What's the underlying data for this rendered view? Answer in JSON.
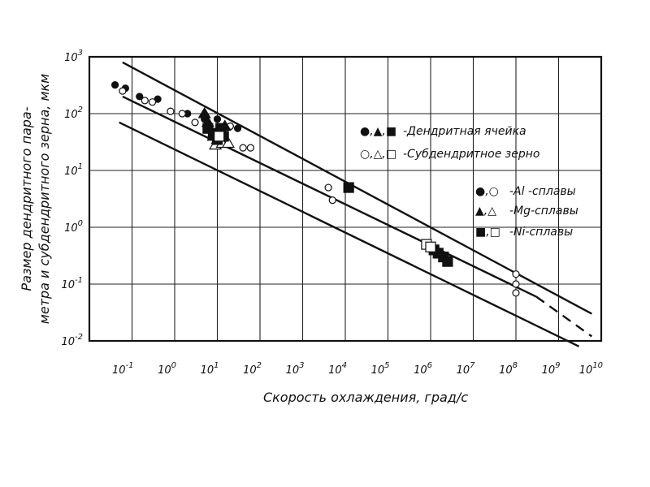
{
  "chart_data": {
    "type": "scatter",
    "title": "",
    "xlabel": "Скорость охлаждения, град/с",
    "ylabel_line1": "Размер дендритного пара-",
    "ylabel_line2": "метра и субдендритного зерна, мкм",
    "x_scale": "log",
    "y_scale": "log",
    "xlim": [
      0.01,
      10000000000
    ],
    "ylim": [
      0.01,
      1000
    ],
    "grid": true,
    "x_ticks": [
      {
        "value": 0.1,
        "base": "10",
        "exp": "-1"
      },
      {
        "value": 1,
        "base": "10",
        "exp": "0"
      },
      {
        "value": 10,
        "base": "10",
        "exp": "1"
      },
      {
        "value": 100,
        "base": "10",
        "exp": "2"
      },
      {
        "value": 1000,
        "base": "10",
        "exp": "3"
      },
      {
        "value": 10000,
        "base": "10",
        "exp": "4"
      },
      {
        "value": 100000,
        "base": "10",
        "exp": "5"
      },
      {
        "value": 1000000,
        "base": "10",
        "exp": "6"
      },
      {
        "value": 10000000,
        "base": "10",
        "exp": "7"
      },
      {
        "value": 100000000,
        "base": "10",
        "exp": "8"
      },
      {
        "value": 1000000000,
        "base": "10",
        "exp": "9"
      },
      {
        "value": 10000000000,
        "base": "10",
        "exp": "10"
      }
    ],
    "y_ticks": [
      {
        "value": 1000,
        "base": "10",
        "exp": "3"
      },
      {
        "value": 100,
        "base": "10",
        "exp": "2"
      },
      {
        "value": 10,
        "base": "10",
        "exp": "1"
      },
      {
        "value": 1,
        "base": "10",
        "exp": "0"
      },
      {
        "value": 0.1,
        "base": "10",
        "exp": "-1"
      },
      {
        "value": 0.01,
        "base": "10",
        "exp": "-2"
      }
    ],
    "lines": [
      {
        "name": "",
        "style": "solid",
        "points": [
          [
            0.06,
            800
          ],
          [
            6000000000,
            0.03
          ]
        ]
      },
      {
        "name": "",
        "style": "solid",
        "points": [
          [
            0.06,
            200
          ],
          [
            300000000,
            0.06
          ]
        ]
      },
      {
        "name": "",
        "style": "dashed",
        "points": [
          [
            300000000,
            0.06
          ],
          [
            6000000000,
            0.012
          ]
        ]
      },
      {
        "name": "",
        "style": "solid",
        "points": [
          [
            0.05,
            70
          ],
          [
            3000000000,
            0.008
          ]
        ]
      }
    ],
    "series": [
      {
        "name": "Al-сплавы, дендритная ячейка",
        "marker": "circle",
        "filled": true,
        "points": [
          [
            0.04,
            320
          ],
          [
            0.07,
            280
          ],
          [
            0.15,
            200
          ],
          [
            0.4,
            180
          ],
          [
            2,
            100
          ],
          [
            5,
            80
          ],
          [
            10,
            80
          ],
          [
            30,
            55
          ],
          [
            20,
            60
          ]
        ]
      },
      {
        "name": "Al-сплавы, субдендритное зерно",
        "marker": "circle",
        "filled": false,
        "points": [
          [
            0.06,
            250
          ],
          [
            0.2,
            170
          ],
          [
            0.3,
            160
          ],
          [
            0.8,
            110
          ],
          [
            1.5,
            100
          ],
          [
            3,
            70
          ],
          [
            20,
            60
          ],
          [
            40,
            25
          ],
          [
            60,
            25
          ],
          [
            4000,
            5
          ],
          [
            5000,
            3
          ],
          [
            100000000,
            0.15
          ],
          [
            100000000,
            0.1
          ],
          [
            100000000,
            0.07
          ]
        ]
      },
      {
        "name": "Mg-сплавы, дендритная ячейка",
        "marker": "triangle",
        "filled": true,
        "points": [
          [
            5,
            100
          ],
          [
            6,
            70
          ],
          [
            8,
            40
          ],
          [
            10,
            35
          ],
          [
            15,
            60
          ],
          [
            12,
            45
          ]
        ]
      },
      {
        "name": "Mg-сплавы, субдендритное зерно",
        "marker": "triangle",
        "filled": false,
        "points": [
          [
            9,
            28
          ],
          [
            13,
            30
          ],
          [
            18,
            30
          ]
        ]
      },
      {
        "name": "Ni-сплавы, дендритная ячейка",
        "marker": "square",
        "filled": true,
        "points": [
          [
            6,
            55
          ],
          [
            8,
            45
          ],
          [
            10,
            35
          ],
          [
            12,
            55
          ],
          [
            14,
            40
          ],
          [
            12000,
            5
          ],
          [
            1200000,
            0.4
          ],
          [
            1500000,
            0.35
          ],
          [
            2000000,
            0.3
          ],
          [
            2500000,
            0.25
          ]
        ]
      },
      {
        "name": "Ni-сплавы, субдендритное зерно",
        "marker": "square",
        "filled": false,
        "points": [
          [
            800000,
            0.5
          ],
          [
            1000000,
            0.45
          ],
          [
            11,
            40
          ]
        ]
      }
    ],
    "legend": {
      "placement": "right",
      "group1": {
        "symbols": "●,▲,■",
        "label": "-Дендритная ячейка"
      },
      "group2": {
        "symbols": "○,△,□",
        "label": "-Субдендритное зерно"
      },
      "group3": [
        {
          "symbols": "●,○",
          "label": "-Al -сплавы"
        },
        {
          "symbols": "▲,△",
          "label": "-Mg-сплавы"
        },
        {
          "symbols": "■,□",
          "label": "-Ni-сплавы"
        }
      ]
    }
  }
}
